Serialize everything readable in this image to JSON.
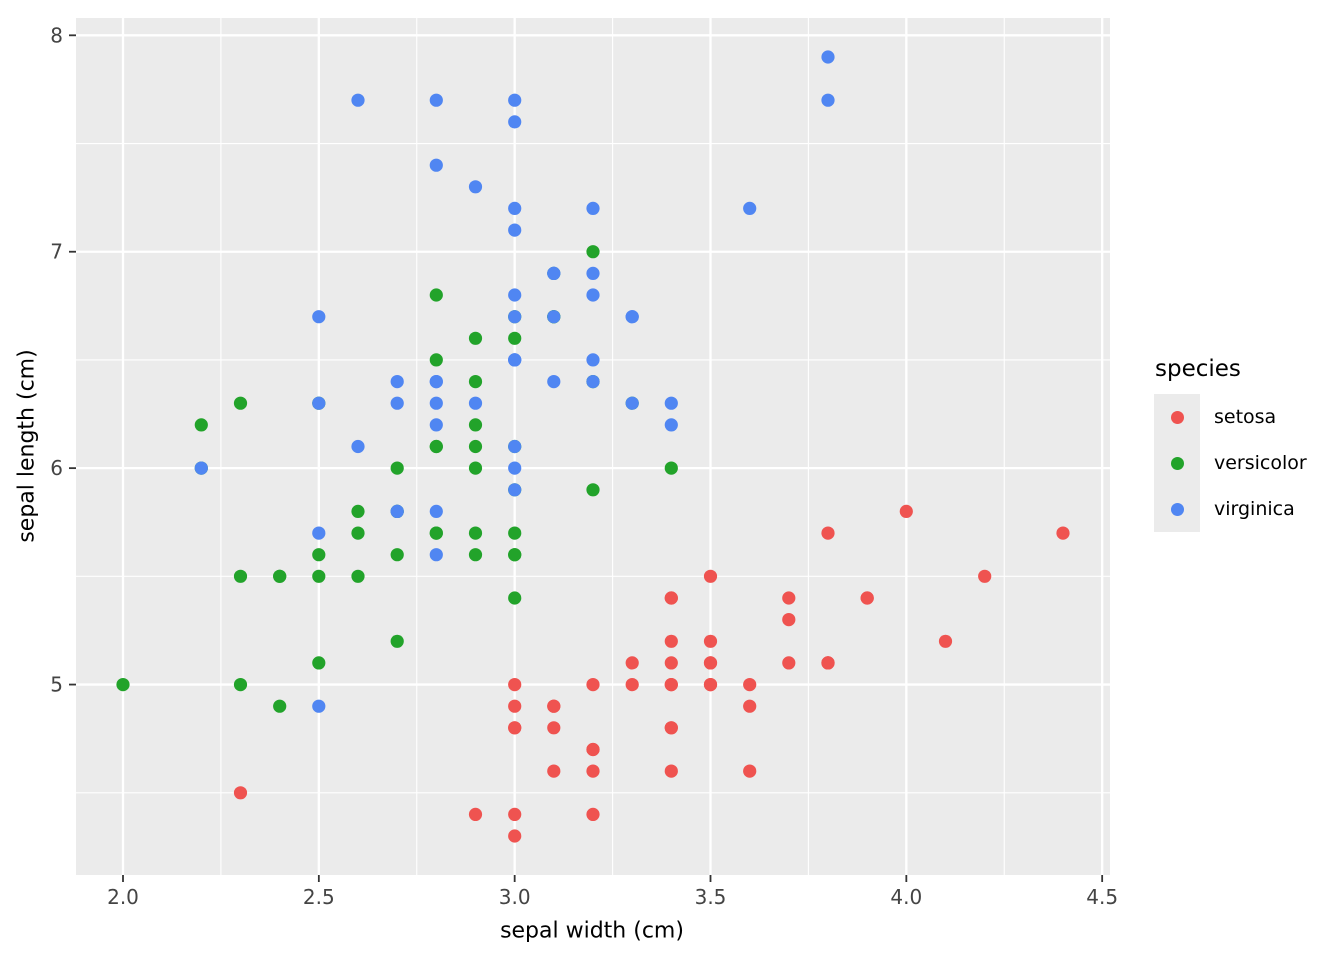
{
  "chart_data": {
    "type": "scatter",
    "title": "",
    "xlabel": "sepal width (cm)",
    "ylabel": "sepal length (cm)",
    "xlim": [
      1.88,
      4.52
    ],
    "ylim": [
      4.12,
      8.08
    ],
    "x_ticks": {
      "values": [
        2.0,
        2.5,
        3.0,
        3.5,
        4.0,
        4.5
      ],
      "labels": [
        "2.0",
        "2.5",
        "3.0",
        "3.5",
        "4.0",
        "4.5"
      ]
    },
    "y_ticks": {
      "values": [
        5,
        6,
        7,
        8
      ],
      "labels": [
        "5",
        "6",
        "7",
        "8"
      ]
    },
    "x_minor_ticks": [
      2.25,
      2.75,
      3.25,
      3.75,
      4.25
    ],
    "y_minor_ticks": [
      4.5,
      5.5,
      6.5,
      7.5
    ],
    "grid": true,
    "legend": {
      "title": "species",
      "position": "right"
    },
    "marker_radius": 6.6,
    "style": {
      "panel_background": "#ebebeb",
      "grid_major_color": "#ffffff",
      "grid_minor_color": "#ffffff",
      "grid_major_width": 2.3,
      "grid_minor_width": 1.1,
      "tick_color": "#333333",
      "tick_label_color": "#444444",
      "tick_label_size": 20,
      "tick_length": 7
    },
    "series": [
      {
        "name": "setosa",
        "color": "#ef5350",
        "points": [
          [
            3.5,
            5.1
          ],
          [
            3.0,
            4.9
          ],
          [
            3.2,
            4.7
          ],
          [
            3.1,
            4.6
          ],
          [
            3.6,
            5.0
          ],
          [
            3.9,
            5.4
          ],
          [
            3.4,
            4.6
          ],
          [
            3.4,
            5.0
          ],
          [
            2.9,
            4.4
          ],
          [
            3.1,
            4.9
          ],
          [
            3.7,
            5.4
          ],
          [
            3.4,
            4.8
          ],
          [
            3.0,
            4.8
          ],
          [
            3.0,
            4.3
          ],
          [
            4.0,
            5.8
          ],
          [
            4.4,
            5.7
          ],
          [
            3.9,
            5.4
          ],
          [
            3.5,
            5.1
          ],
          [
            3.8,
            5.7
          ],
          [
            3.8,
            5.1
          ],
          [
            3.4,
            5.4
          ],
          [
            3.7,
            5.1
          ],
          [
            3.6,
            4.6
          ],
          [
            3.3,
            5.1
          ],
          [
            3.4,
            4.8
          ],
          [
            3.0,
            5.0
          ],
          [
            3.4,
            5.0
          ],
          [
            3.5,
            5.2
          ],
          [
            3.4,
            5.2
          ],
          [
            3.2,
            4.7
          ],
          [
            3.1,
            4.8
          ],
          [
            3.4,
            5.4
          ],
          [
            4.1,
            5.2
          ],
          [
            4.2,
            5.5
          ],
          [
            3.1,
            4.9
          ],
          [
            3.2,
            5.0
          ],
          [
            3.5,
            5.5
          ],
          [
            3.6,
            4.9
          ],
          [
            3.0,
            4.4
          ],
          [
            3.4,
            5.1
          ],
          [
            3.5,
            5.0
          ],
          [
            2.3,
            4.5
          ],
          [
            3.2,
            4.4
          ],
          [
            3.5,
            5.0
          ],
          [
            3.8,
            5.1
          ],
          [
            3.0,
            4.8
          ],
          [
            3.8,
            5.1
          ],
          [
            3.2,
            4.6
          ],
          [
            3.7,
            5.3
          ],
          [
            3.3,
            5.0
          ]
        ]
      },
      {
        "name": "versicolor",
        "color": "#22a32a",
        "points": [
          [
            3.2,
            7.0
          ],
          [
            3.2,
            6.4
          ],
          [
            3.1,
            6.9
          ],
          [
            2.3,
            5.5
          ],
          [
            2.8,
            6.5
          ],
          [
            2.8,
            5.7
          ],
          [
            3.3,
            6.3
          ],
          [
            2.4,
            4.9
          ],
          [
            2.9,
            6.6
          ],
          [
            2.7,
            5.2
          ],
          [
            2.0,
            5.0
          ],
          [
            3.0,
            5.9
          ],
          [
            2.2,
            6.0
          ],
          [
            2.9,
            6.1
          ],
          [
            2.9,
            5.6
          ],
          [
            3.1,
            6.7
          ],
          [
            3.0,
            5.6
          ],
          [
            2.7,
            5.8
          ],
          [
            2.2,
            6.2
          ],
          [
            2.5,
            5.6
          ],
          [
            3.2,
            5.9
          ],
          [
            2.8,
            6.1
          ],
          [
            2.5,
            6.3
          ],
          [
            2.8,
            6.1
          ],
          [
            2.9,
            6.4
          ],
          [
            3.0,
            6.6
          ],
          [
            2.8,
            6.8
          ],
          [
            3.0,
            6.7
          ],
          [
            2.9,
            6.0
          ],
          [
            2.6,
            5.7
          ],
          [
            2.4,
            5.5
          ],
          [
            2.4,
            5.5
          ],
          [
            2.7,
            5.8
          ],
          [
            2.7,
            6.0
          ],
          [
            3.0,
            5.4
          ],
          [
            3.4,
            6.0
          ],
          [
            3.1,
            6.7
          ],
          [
            2.3,
            6.3
          ],
          [
            3.0,
            5.6
          ],
          [
            2.5,
            5.5
          ],
          [
            2.6,
            5.5
          ],
          [
            3.0,
            6.1
          ],
          [
            2.6,
            5.8
          ],
          [
            2.3,
            5.0
          ],
          [
            2.7,
            5.6
          ],
          [
            3.0,
            5.7
          ],
          [
            2.9,
            5.7
          ],
          [
            2.9,
            6.2
          ],
          [
            2.5,
            5.1
          ],
          [
            2.8,
            5.7
          ]
        ]
      },
      {
        "name": "virginica",
        "color": "#5086f2",
        "points": [
          [
            3.3,
            6.3
          ],
          [
            2.7,
            5.8
          ],
          [
            3.0,
            7.1
          ],
          [
            2.9,
            6.3
          ],
          [
            3.0,
            6.5
          ],
          [
            3.0,
            7.6
          ],
          [
            2.5,
            4.9
          ],
          [
            2.9,
            7.3
          ],
          [
            2.5,
            6.7
          ],
          [
            3.6,
            7.2
          ],
          [
            3.2,
            6.5
          ],
          [
            2.7,
            6.4
          ],
          [
            3.0,
            6.8
          ],
          [
            2.5,
            5.7
          ],
          [
            2.8,
            5.8
          ],
          [
            3.2,
            6.4
          ],
          [
            3.0,
            6.5
          ],
          [
            3.8,
            7.7
          ],
          [
            2.6,
            7.7
          ],
          [
            2.2,
            6.0
          ],
          [
            3.2,
            6.9
          ],
          [
            2.8,
            5.6
          ],
          [
            2.8,
            7.7
          ],
          [
            2.7,
            6.3
          ],
          [
            3.3,
            6.7
          ],
          [
            3.2,
            7.2
          ],
          [
            2.8,
            6.2
          ],
          [
            3.0,
            6.1
          ],
          [
            2.8,
            6.4
          ],
          [
            3.0,
            7.2
          ],
          [
            2.8,
            7.4
          ],
          [
            3.8,
            7.9
          ],
          [
            2.8,
            6.4
          ],
          [
            2.8,
            6.3
          ],
          [
            2.6,
            6.1
          ],
          [
            3.0,
            7.7
          ],
          [
            3.4,
            6.3
          ],
          [
            3.1,
            6.4
          ],
          [
            3.0,
            6.0
          ],
          [
            3.1,
            6.9
          ],
          [
            3.1,
            6.7
          ],
          [
            3.1,
            6.9
          ],
          [
            2.7,
            5.8
          ],
          [
            3.2,
            6.8
          ],
          [
            3.3,
            6.7
          ],
          [
            3.0,
            6.7
          ],
          [
            2.5,
            6.3
          ],
          [
            3.0,
            6.5
          ],
          [
            3.4,
            6.2
          ],
          [
            3.0,
            5.9
          ]
        ]
      }
    ]
  }
}
